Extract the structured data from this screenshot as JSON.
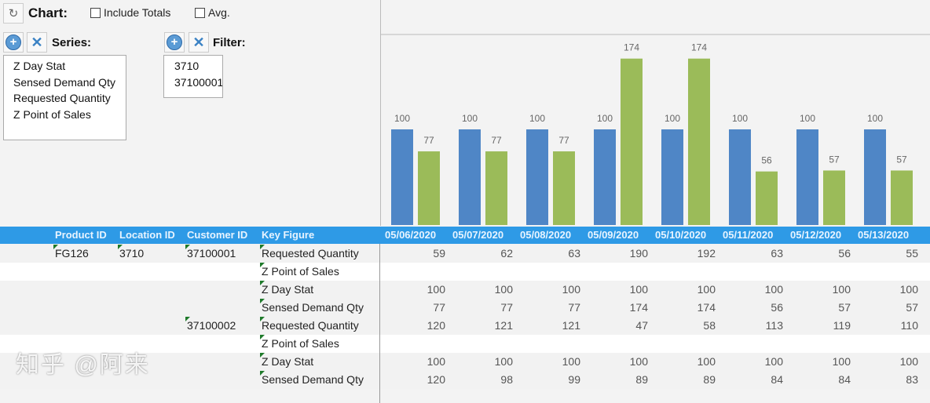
{
  "toolbar": {
    "chart_label": "Chart:",
    "include_totals_label": "Include Totals",
    "include_totals_checked": false,
    "avg_label": "Avg.",
    "avg_checked": false,
    "refresh_icon": "refresh-icon"
  },
  "series": {
    "label": "Series:",
    "items": [
      "Z Day Stat",
      "Sensed Demand Qty",
      "Requested Quantity",
      "Z Point of Sales"
    ]
  },
  "filter": {
    "label": "Filter:",
    "items": [
      "3710",
      "37100001"
    ]
  },
  "chart_data": {
    "type": "bar",
    "categories": [
      "05/06/2020",
      "05/07/2020",
      "05/08/2020",
      "05/09/2020",
      "05/10/2020",
      "05/11/2020",
      "05/12/2020",
      "05/13/2020"
    ],
    "series": [
      {
        "values": [
          100,
          100,
          100,
          100,
          100,
          100,
          100,
          100
        ],
        "color": "#4f86c6"
      },
      {
        "values": [
          77,
          77,
          77,
          174,
          174,
          56,
          57,
          57
        ],
        "color": "#9bbb59"
      }
    ],
    "ylim": [
      0,
      230
    ]
  },
  "table": {
    "headers": [
      "Product ID",
      "Location ID",
      "Customer ID",
      "Key Figure"
    ],
    "dates": [
      "05/06/2020",
      "05/07/2020",
      "05/08/2020",
      "05/09/2020",
      "05/10/2020",
      "05/11/2020",
      "05/12/2020",
      "05/13/2020"
    ],
    "rows": [
      {
        "product": "FG126",
        "location": "3710",
        "customer": "37100001",
        "key": "Requested Quantity",
        "values": [
          "59",
          "62",
          "63",
          "190",
          "192",
          "63",
          "56",
          "55"
        ]
      },
      {
        "product": "",
        "location": "",
        "customer": "",
        "key": "Z Point of Sales",
        "values": [
          "",
          "",
          "",
          "",
          "",
          "",
          "",
          ""
        ]
      },
      {
        "product": "",
        "location": "",
        "customer": "",
        "key": "Z Day Stat",
        "values": [
          "100",
          "100",
          "100",
          "100",
          "100",
          "100",
          "100",
          "100"
        ]
      },
      {
        "product": "",
        "location": "",
        "customer": "",
        "key": "Sensed Demand Qty",
        "values": [
          "77",
          "77",
          "77",
          "174",
          "174",
          "56",
          "57",
          "57"
        ]
      },
      {
        "product": "",
        "location": "",
        "customer": "37100002",
        "key": "Requested Quantity",
        "values": [
          "120",
          "121",
          "121",
          "47",
          "58",
          "113",
          "119",
          "110"
        ]
      },
      {
        "product": "",
        "location": "",
        "customer": "",
        "key": "Z Point of Sales",
        "values": [
          "",
          "",
          "",
          "",
          "",
          "",
          "",
          ""
        ]
      },
      {
        "product": "",
        "location": "",
        "customer": "",
        "key": "Z Day Stat",
        "values": [
          "100",
          "100",
          "100",
          "100",
          "100",
          "100",
          "100",
          "100"
        ]
      },
      {
        "product": "",
        "location": "",
        "customer": "",
        "key": "Sensed Demand Qty",
        "values": [
          "120",
          "98",
          "99",
          "89",
          "89",
          "84",
          "84",
          "83"
        ]
      }
    ]
  },
  "watermark": "知乎 @阿来"
}
